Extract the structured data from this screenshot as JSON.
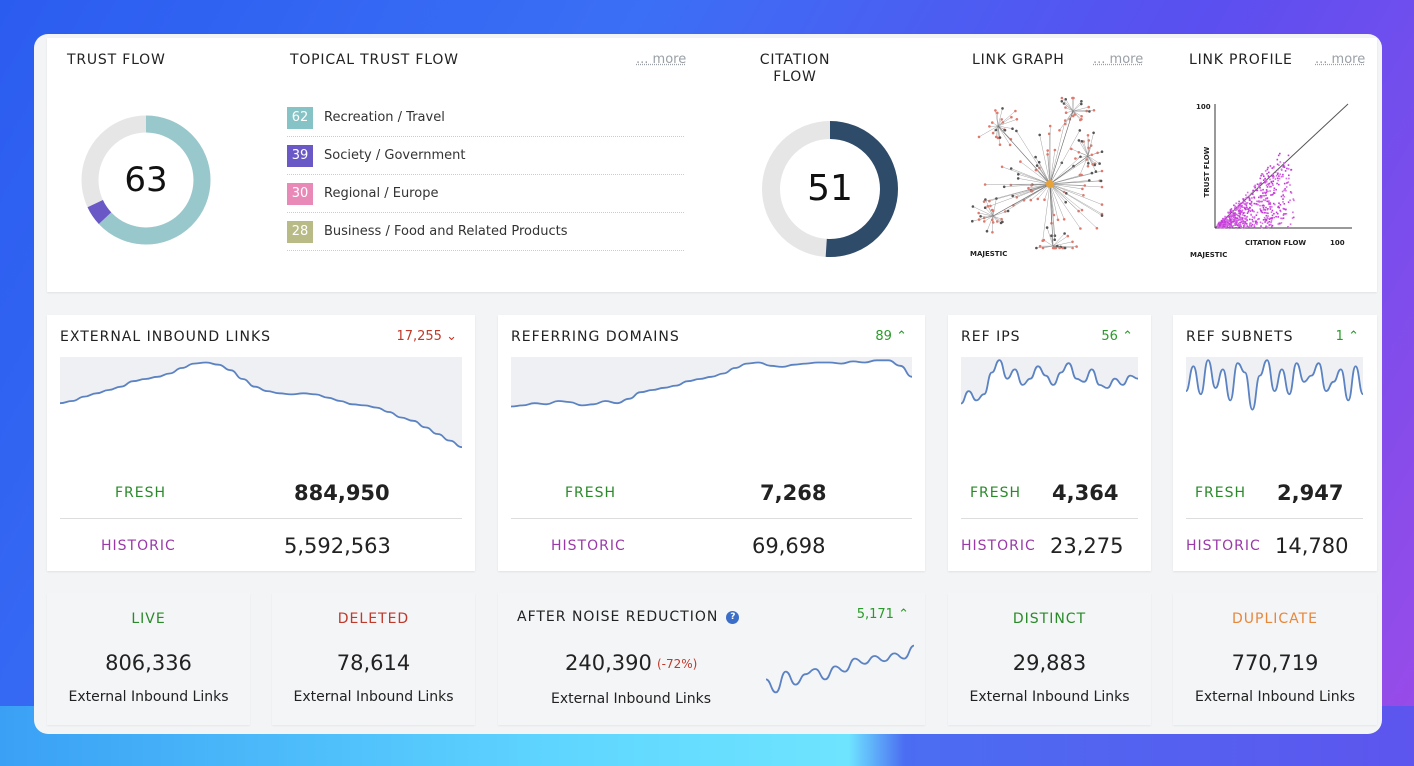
{
  "colors": {
    "trust_teal": "#98c8cc",
    "citation_navy": "#2f4b6a",
    "fresh_green": "#2a8a2a",
    "historic_purple": "#9a3aa8",
    "down_red": "#c0392b",
    "up_green": "#2a9a2a",
    "deleted_red": "#c0392b",
    "duplicate_orange": "#e8873a",
    "ttf_colors": [
      "#86c3c6",
      "#6a58c6",
      "#e889b8",
      "#b8bb86"
    ]
  },
  "trust_flow": {
    "title": "TRUST FLOW",
    "value": "63",
    "fraction": 0.63
  },
  "topical_trust_flow": {
    "title": "TOPICAL TRUST FLOW",
    "more": "... more",
    "items": [
      {
        "score": "62",
        "label": "Recreation / Travel"
      },
      {
        "score": "39",
        "label": "Society / Government"
      },
      {
        "score": "30",
        "label": "Regional / Europe"
      },
      {
        "score": "28",
        "label": "Business / Food and Related Products"
      }
    ]
  },
  "citation_flow": {
    "title_line1": "CITATION",
    "title_line2": "FLOW",
    "value": "51",
    "fraction": 0.51
  },
  "link_graph": {
    "title": "LINK GRAPH",
    "more": "... more",
    "brand": "MAJESTIC"
  },
  "link_profile": {
    "title": "LINK PROFILE",
    "more": "... more",
    "y_label": "TRUST FLOW",
    "x_label": "CITATION FLOW",
    "y_max": "100",
    "x_max": "100",
    "brand": "MAJESTIC"
  },
  "stats": {
    "external": {
      "title": "EXTERNAL INBOUND LINKS",
      "trend": "17,255",
      "trend_dir": "down",
      "fresh_label": "FRESH",
      "fresh": "884,950",
      "historic_label": "HISTORIC",
      "historic": "5,592,563",
      "spark": [
        0.42,
        0.4,
        0.36,
        0.33,
        0.3,
        0.27,
        0.22,
        0.2,
        0.18,
        0.15,
        0.1,
        0.06,
        0.05,
        0.07,
        0.12,
        0.2,
        0.27,
        0.31,
        0.33,
        0.34,
        0.33,
        0.34,
        0.37,
        0.4,
        0.43,
        0.44,
        0.46,
        0.5,
        0.55,
        0.58,
        0.64,
        0.7,
        0.76,
        0.82
      ]
    },
    "referring": {
      "title": "REFERRING DOMAINS",
      "trend": "89",
      "trend_dir": "up",
      "fresh_label": "FRESH",
      "fresh": "7,268",
      "historic_label": "HISTORIC",
      "historic": "69,698",
      "spark": [
        0.45,
        0.44,
        0.42,
        0.43,
        0.4,
        0.41,
        0.44,
        0.43,
        0.4,
        0.42,
        0.38,
        0.32,
        0.3,
        0.28,
        0.26,
        0.22,
        0.2,
        0.18,
        0.15,
        0.1,
        0.06,
        0.05,
        0.08,
        0.09,
        0.07,
        0.06,
        0.05,
        0.05,
        0.06,
        0.04,
        0.05,
        0.03,
        0.03,
        0.08,
        0.18
      ]
    },
    "ref_ips": {
      "title": "REF IPS",
      "trend": "56",
      "trend_dir": "up",
      "fresh_label": "FRESH",
      "fresh": "4,364",
      "historic_label": "HISTORIC",
      "historic": "23,275",
      "spark": [
        0.75,
        0.55,
        0.7,
        0.6,
        0.25,
        0.05,
        0.35,
        0.2,
        0.45,
        0.35,
        0.15,
        0.3,
        0.45,
        0.25,
        0.1,
        0.35,
        0.4,
        0.2,
        0.45,
        0.5,
        0.35,
        0.45,
        0.3,
        0.35
      ]
    },
    "ref_subnets": {
      "title": "REF SUBNETS",
      "trend": "1",
      "trend_dir": "up",
      "fresh_label": "FRESH",
      "fresh": "2,947",
      "historic_label": "HISTORIC",
      "historic": "14,780",
      "spark": [
        0.55,
        0.15,
        0.6,
        0.05,
        0.5,
        0.2,
        0.7,
        0.1,
        0.25,
        0.85,
        0.3,
        0.05,
        0.55,
        0.2,
        0.6,
        0.1,
        0.4,
        0.3,
        0.1,
        0.55,
        0.4,
        0.2,
        0.7,
        0.15,
        0.6
      ]
    }
  },
  "bottom": {
    "live": {
      "title": "LIVE",
      "value": "806,336",
      "sub": "External Inbound Links"
    },
    "deleted": {
      "title": "DELETED",
      "value": "78,614",
      "sub": "External Inbound Links"
    },
    "noise": {
      "title": "AFTER NOISE REDUCTION",
      "trend": "5,171",
      "trend_dir": "up",
      "value": "240,390",
      "change": "(-72%)",
      "sub": "External Inbound Links",
      "spark": [
        0.7,
        0.95,
        0.55,
        0.8,
        0.6,
        0.5,
        0.7,
        0.45,
        0.55,
        0.3,
        0.4,
        0.25,
        0.35,
        0.2,
        0.3,
        0.05
      ]
    },
    "distinct": {
      "title": "DISTINCT",
      "value": "29,883",
      "sub": "External Inbound Links"
    },
    "duplicate": {
      "title": "DUPLICATE",
      "value": "770,719",
      "sub": "External Inbound Links"
    }
  }
}
